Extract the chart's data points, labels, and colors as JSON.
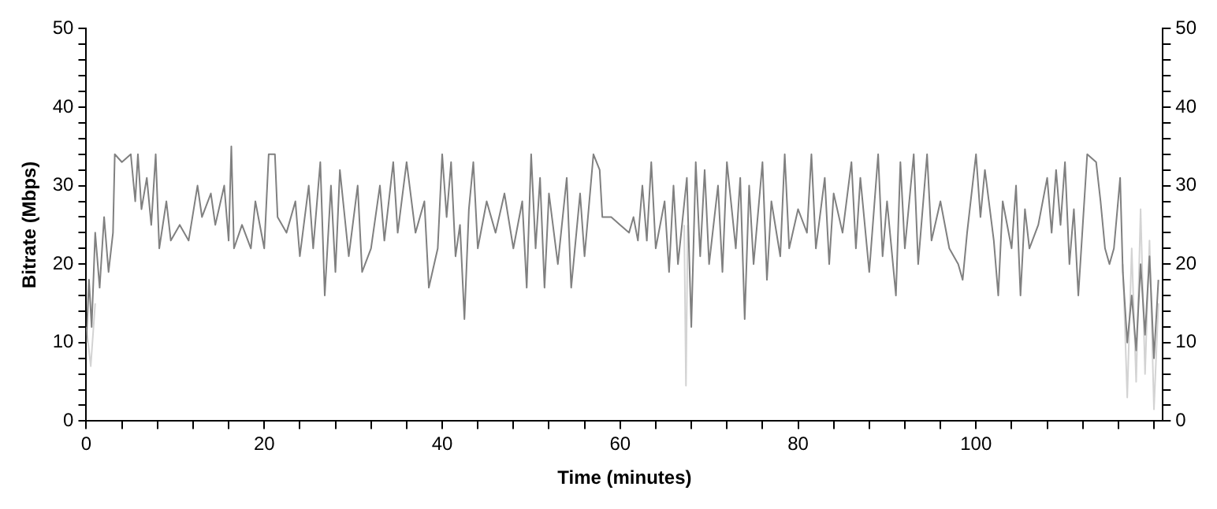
{
  "chart_data": {
    "type": "line",
    "xlabel": "Time (minutes)",
    "ylabel": "Bitrate (Mbps)",
    "xlim": [
      0,
      121
    ],
    "ylim": [
      0,
      50
    ],
    "y2lim": [
      0,
      50
    ],
    "xticks": [
      0,
      {
        "value": 4,
        "label": null
      },
      {
        "value": 8,
        "label": null
      },
      {
        "value": 12,
        "label": null
      },
      {
        "value": 16,
        "label": null
      },
      20,
      {
        "value": 24,
        "label": null
      },
      {
        "value": 28,
        "label": null
      },
      {
        "value": 32,
        "label": null
      },
      {
        "value": 36,
        "label": null
      },
      40,
      {
        "value": 44,
        "label": null
      },
      {
        "value": 48,
        "label": null
      },
      {
        "value": 52,
        "label": null
      },
      {
        "value": 56,
        "label": null
      },
      60,
      {
        "value": 64,
        "label": null
      },
      {
        "value": 68,
        "label": null
      },
      {
        "value": 72,
        "label": null
      },
      {
        "value": 76,
        "label": null
      },
      80,
      {
        "value": 84,
        "label": null
      },
      {
        "value": 88,
        "label": null
      },
      {
        "value": 92,
        "label": null
      },
      {
        "value": 96,
        "label": null
      },
      100,
      {
        "value": 104,
        "label": null
      },
      {
        "value": 108,
        "label": null
      },
      {
        "value": 112,
        "label": null
      },
      {
        "value": 116,
        "label": null
      },
      {
        "value": 120,
        "label": null
      }
    ],
    "yticks": [
      0,
      {
        "value": 2,
        "label": null
      },
      {
        "value": 4,
        "label": null
      },
      {
        "value": 6,
        "label": null
      },
      {
        "value": 8,
        "label": null
      },
      10,
      {
        "value": 12,
        "label": null
      },
      {
        "value": 14,
        "label": null
      },
      {
        "value": 16,
        "label": null
      },
      {
        "value": 18,
        "label": null
      },
      20,
      {
        "value": 22,
        "label": null
      },
      {
        "value": 24,
        "label": null
      },
      {
        "value": 26,
        "label": null
      },
      {
        "value": 28,
        "label": null
      },
      30,
      {
        "value": 32,
        "label": null
      },
      {
        "value": 34,
        "label": null
      },
      {
        "value": 36,
        "label": null
      },
      {
        "value": 38,
        "label": null
      },
      40,
      {
        "value": 42,
        "label": null
      },
      {
        "value": 44,
        "label": null
      },
      {
        "value": 46,
        "label": null
      },
      {
        "value": 48,
        "label": null
      },
      50
    ],
    "y2ticks": [
      0,
      {
        "value": 2,
        "label": null
      },
      {
        "value": 4,
        "label": null
      },
      {
        "value": 6,
        "label": null
      },
      {
        "value": 8,
        "label": null
      },
      10,
      {
        "value": 12,
        "label": null
      },
      {
        "value": 14,
        "label": null
      },
      {
        "value": 16,
        "label": null
      },
      {
        "value": 18,
        "label": null
      },
      20,
      {
        "value": 22,
        "label": null
      },
      {
        "value": 24,
        "label": null
      },
      {
        "value": 26,
        "label": null
      },
      {
        "value": 28,
        "label": null
      },
      30,
      {
        "value": 32,
        "label": null
      },
      {
        "value": 34,
        "label": null
      },
      {
        "value": 36,
        "label": null
      },
      {
        "value": 38,
        "label": null
      },
      40,
      {
        "value": 42,
        "label": null
      },
      {
        "value": 44,
        "label": null
      },
      {
        "value": 46,
        "label": null
      },
      {
        "value": 48,
        "label": null
      },
      50
    ],
    "grid": false,
    "legend": false,
    "marker": "none",
    "line_style": "solid",
    "series": [
      {
        "color": "#808080",
        "x": [
          0,
          0.3,
          0.6,
          1,
          1.5,
          2,
          2.5,
          3,
          3.2,
          4,
          5,
          5.5,
          5.8,
          6.2,
          6.8,
          7.3,
          7.8,
          8.2,
          9,
          9.5,
          10.5,
          11.5,
          12.5,
          13,
          14,
          14.5,
          15.5,
          16,
          16.3,
          16.6,
          17.5,
          18.5,
          19,
          20,
          20.5,
          21.2,
          21.5,
          22.5,
          23.5,
          24,
          25,
          25.5,
          26.3,
          26.8,
          27.5,
          28,
          28.5,
          29.5,
          30.5,
          31,
          32,
          33,
          33.5,
          34.5,
          35,
          36,
          37,
          38,
          38.5,
          39.5,
          40,
          40.5,
          41,
          41.5,
          42,
          42.5,
          43,
          43.5,
          44,
          45,
          46,
          47,
          48,
          49,
          49.5,
          50,
          50.5,
          51,
          51.5,
          52,
          53,
          54,
          54.5,
          55.5,
          56,
          57,
          57.7,
          58,
          59,
          60,
          61,
          61.5,
          62,
          62.5,
          63,
          63.5,
          64,
          65,
          65.5,
          66,
          66.5,
          67.5,
          68,
          68.5,
          69,
          69.5,
          70,
          71,
          71.5,
          72,
          73,
          73.5,
          74,
          74.5,
          75,
          76,
          76.5,
          77,
          78,
          78.5,
          79,
          80,
          81,
          81.5,
          82,
          83,
          83.5,
          84,
          85,
          86,
          86.5,
          87,
          88,
          89,
          89.5,
          90,
          91,
          91.5,
          92,
          93,
          93.5,
          94.5,
          95,
          96,
          97,
          98,
          98.5,
          99,
          100,
          100.5,
          101,
          102,
          102.5,
          103,
          104,
          104.5,
          105,
          105.5,
          106,
          107,
          108,
          108.5,
          109,
          109.5,
          110,
          110.5,
          111,
          111.5,
          112,
          112.5,
          113.5,
          114,
          114.5,
          115,
          115.5,
          116.2,
          116.5,
          117,
          117.5,
          118,
          118.5,
          119,
          119.5,
          120,
          120.5
        ],
        "values": [
          10,
          18,
          12,
          24,
          17,
          26,
          19,
          24,
          34,
          33,
          34,
          28,
          34,
          27,
          31,
          25,
          34,
          22,
          28,
          23,
          25,
          23,
          30,
          26,
          29,
          25,
          30,
          23,
          35,
          22,
          25,
          22,
          28,
          22,
          34,
          34,
          26,
          24,
          28,
          21,
          30,
          22,
          33,
          16,
          30,
          19,
          32,
          21,
          30,
          19,
          22,
          30,
          23,
          33,
          24,
          33,
          24,
          28,
          17,
          22,
          34,
          26,
          33,
          21,
          25,
          13,
          27,
          33,
          22,
          28,
          24,
          29,
          22,
          28,
          17,
          34,
          22,
          31,
          17,
          29,
          20,
          31,
          17,
          29,
          21,
          34,
          32,
          26,
          26,
          25,
          24,
          26,
          23,
          30,
          23,
          33,
          22,
          28,
          19,
          30,
          20,
          31,
          12,
          33,
          21,
          32,
          20,
          30,
          19,
          33,
          22,
          31,
          13,
          30,
          20,
          33,
          18,
          28,
          21,
          34,
          22,
          27,
          24,
          34,
          22,
          31,
          20,
          29,
          24,
          33,
          22,
          31,
          19,
          34,
          21,
          28,
          16,
          33,
          22,
          34,
          20,
          34,
          23,
          28,
          22,
          20,
          18,
          24,
          34,
          26,
          32,
          23,
          16,
          28,
          22,
          30,
          16,
          27,
          22,
          25,
          31,
          24,
          32,
          25,
          33,
          20,
          27,
          16,
          25,
          34,
          33,
          28,
          22,
          20,
          22,
          31,
          19,
          10,
          16,
          9,
          20,
          11,
          21,
          8,
          18
        ]
      },
      {
        "color": "#d3d3d3",
        "x": [
          0,
          0.5,
          1,
          1.2,
          67.2,
          67.4,
          67.6,
          67.8,
          116.5,
          117,
          117.5,
          118,
          118.5,
          119,
          119.5,
          120,
          120.5
        ],
        "values": [
          12,
          7,
          15,
          null,
          25,
          4.5,
          25,
          null,
          20,
          3,
          22,
          5,
          27,
          6,
          23,
          1.5,
          15
        ]
      }
    ]
  }
}
